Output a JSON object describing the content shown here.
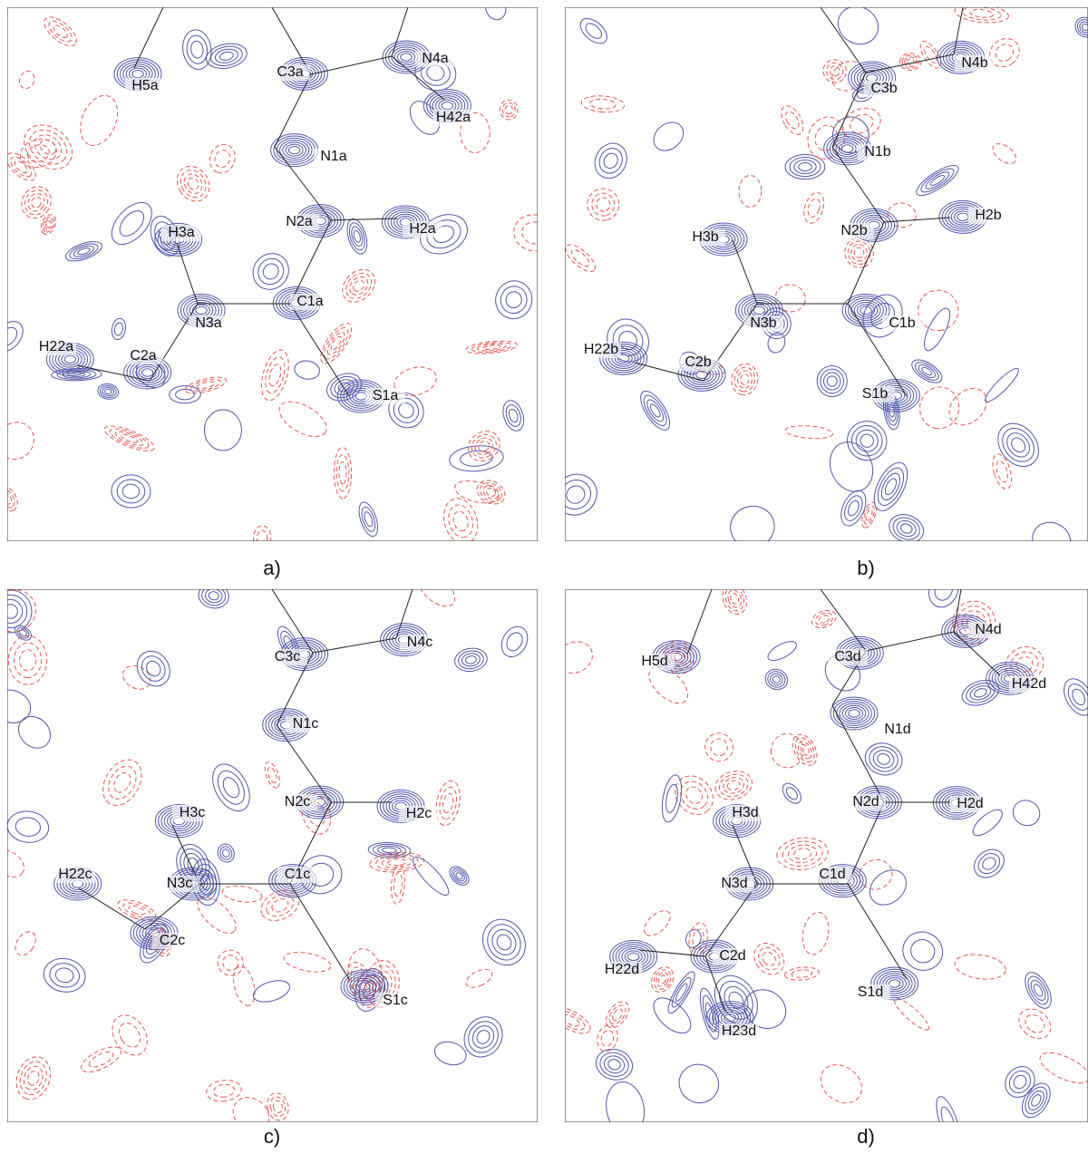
{
  "panels": [
    {
      "caption": "a)",
      "atoms": [
        "H5a",
        "C3a",
        "N4a",
        "H42a",
        "N1a",
        "N2a",
        "H2a",
        "H3a",
        "C1a",
        "N3a",
        "C2a",
        "H22a",
        "S1a"
      ]
    },
    {
      "caption": "b)",
      "atoms": [
        "C3b",
        "N4b",
        "N1b",
        "N2b",
        "H2b",
        "H3b",
        "N3b",
        "C1b",
        "H22b",
        "C2b",
        "S1b"
      ]
    },
    {
      "caption": "c)",
      "atoms": [
        "C3c",
        "N4c",
        "N1c",
        "N2c",
        "H2c",
        "H3c",
        "C1c",
        "N3c",
        "H22c",
        "C2c",
        "S1c"
      ]
    },
    {
      "caption": "d)",
      "atoms": [
        "H5d",
        "C3d",
        "N4d",
        "H42d",
        "N1d",
        "N2d",
        "H2d",
        "H3d",
        "N3d",
        "C1d",
        "C2d",
        "H22d",
        "S1d",
        "H23d"
      ]
    }
  ]
}
